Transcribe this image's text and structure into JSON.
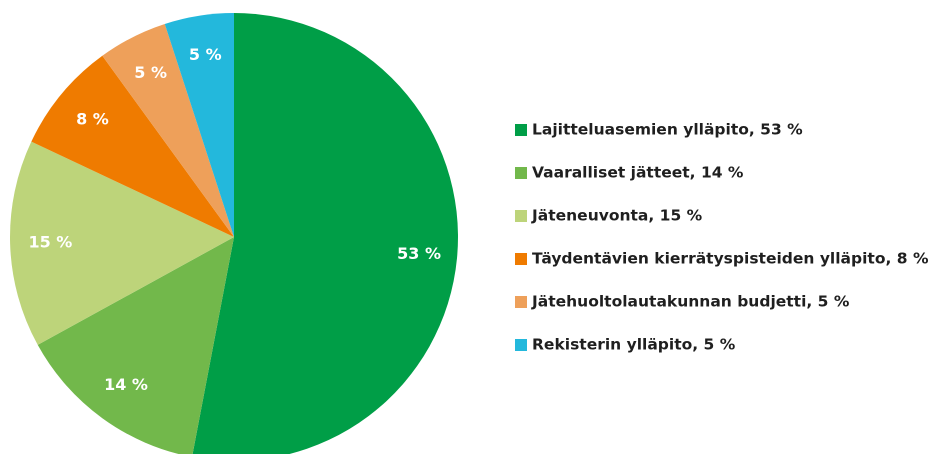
{
  "chart_data": {
    "type": "pie",
    "categories": [
      "Lajitteluasemien ylläpito, 53 %",
      "Vaaralliset jätteet, 14 %",
      "Jäteneuvonta, 15 %",
      "Täydentävien kierrätyspisteiden ylläpito, 8 %",
      "Jätehuoltolautakunnan budjetti, 5 %",
      "Rekisterin ylläpito, 5 %"
    ],
    "values": [
      53,
      14,
      15,
      8,
      5,
      5
    ],
    "value_labels": [
      "53 %",
      "14 %",
      "15 %",
      "8 %",
      "5 %",
      "5 %"
    ],
    "colors": [
      "#009e47",
      "#72b84b",
      "#bdd47a",
      "#ef7b00",
      "#eea05a",
      "#23b8dc"
    ],
    "legend": "right"
  }
}
